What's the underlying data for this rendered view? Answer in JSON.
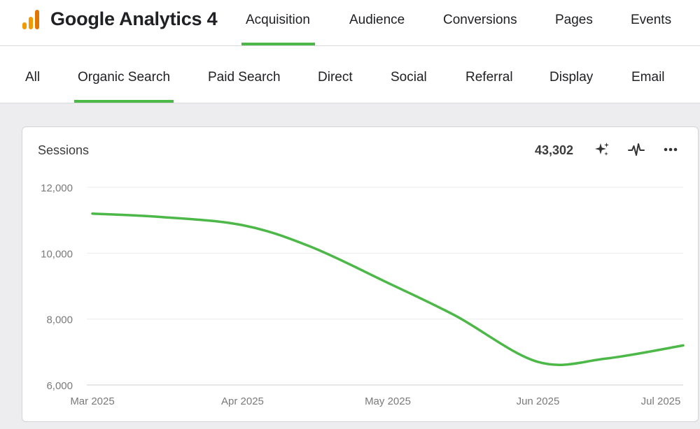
{
  "app": {
    "title": "Google Analytics 4",
    "accent": "#4cb848",
    "logo_color": "#f29900"
  },
  "top_nav": {
    "tabs": [
      {
        "label": "Acquisition",
        "active": true
      },
      {
        "label": "Audience",
        "active": false
      },
      {
        "label": "Conversions",
        "active": false
      },
      {
        "label": "Pages",
        "active": false
      },
      {
        "label": "Events",
        "active": false
      }
    ]
  },
  "sub_nav": {
    "tabs": [
      {
        "label": "All",
        "active": false
      },
      {
        "label": "Organic Search",
        "active": true
      },
      {
        "label": "Paid Search",
        "active": false
      },
      {
        "label": "Direct",
        "active": false
      },
      {
        "label": "Social",
        "active": false
      },
      {
        "label": "Referral",
        "active": false
      },
      {
        "label": "Display",
        "active": false
      },
      {
        "label": "Email",
        "active": false
      }
    ]
  },
  "card": {
    "title": "Sessions",
    "total": "43,302",
    "icons": [
      "sparkle-icon",
      "pulse-icon",
      "more-icon"
    ]
  },
  "chart_data": {
    "type": "line",
    "x": [
      "2025-03-01",
      "2025-03-15",
      "2025-04-01",
      "2025-04-15",
      "2025-05-01",
      "2025-05-15",
      "2025-06-01",
      "2025-06-15",
      "2025-07-01"
    ],
    "series": [
      {
        "values": [
          11200,
          11100,
          10850,
          10200,
          9100,
          8100,
          6700,
          6800,
          7200
        ],
        "color": "#4cb848"
      }
    ],
    "x_tick_labels": [
      "Mar 2025",
      "Apr 2025",
      "May 2025",
      "Jun 2025",
      "Jul 2025"
    ],
    "y_ticks": [
      6000,
      8000,
      10000,
      12000
    ],
    "y_tick_labels": [
      "6,000",
      "8,000",
      "10,000",
      "12,000"
    ],
    "ylim": [
      6000,
      12000
    ],
    "grid": true,
    "legend": "none"
  }
}
